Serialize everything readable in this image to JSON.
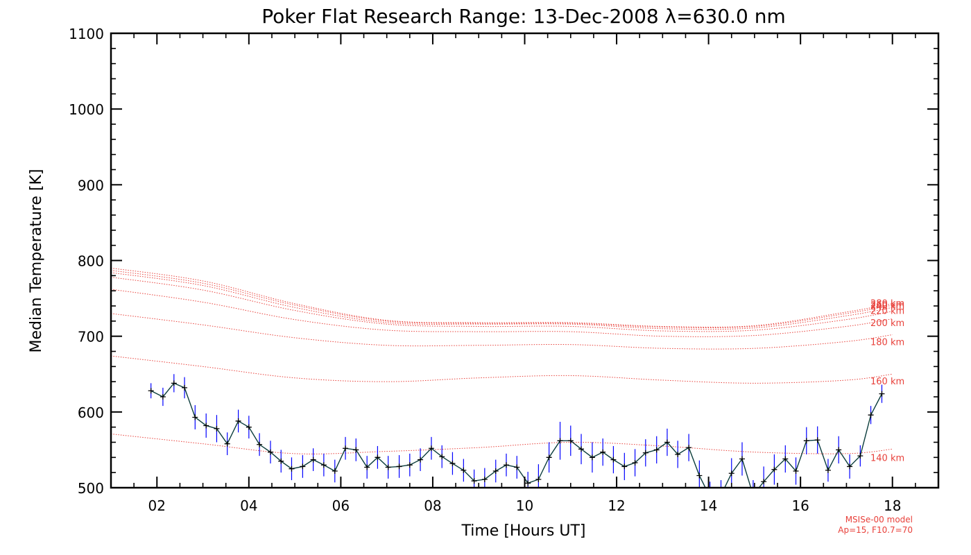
{
  "chart_data": {
    "type": "line",
    "title": "Poker Flat Research Range: 13-Dec-2008 λ=630.0 nm",
    "xlabel": "Time [Hours UT]",
    "ylabel": "Median Temperature [K]",
    "xlim": [
      1.0,
      19.0
    ],
    "ylim": [
      500,
      1100
    ],
    "xticks": [
      2,
      4,
      6,
      8,
      10,
      12,
      14,
      16,
      18
    ],
    "xtick_labels": [
      "02",
      "04",
      "06",
      "08",
      "10",
      "12",
      "14",
      "16",
      "18"
    ],
    "yticks": [
      500,
      600,
      700,
      800,
      900,
      1000,
      1100
    ],
    "ytick_labels": [
      "500",
      "600",
      "700",
      "800",
      "900",
      "1000",
      "1100"
    ],
    "grid": false,
    "measured": {
      "color": "#0a3c3c",
      "errorbar_color": "#0000ff",
      "points": [
        {
          "x": 1.87,
          "y": 628,
          "err": 10
        },
        {
          "x": 2.13,
          "y": 620,
          "err": 12
        },
        {
          "x": 2.37,
          "y": 638,
          "err": 12
        },
        {
          "x": 2.6,
          "y": 632,
          "err": 14
        },
        {
          "x": 2.83,
          "y": 593,
          "err": 16
        },
        {
          "x": 3.07,
          "y": 582,
          "err": 16
        },
        {
          "x": 3.3,
          "y": 578,
          "err": 18
        },
        {
          "x": 3.53,
          "y": 558,
          "err": 15
        },
        {
          "x": 3.77,
          "y": 588,
          "err": 15
        },
        {
          "x": 4.0,
          "y": 580,
          "err": 15
        },
        {
          "x": 4.23,
          "y": 557,
          "err": 15
        },
        {
          "x": 4.47,
          "y": 547,
          "err": 15
        },
        {
          "x": 4.7,
          "y": 535,
          "err": 15
        },
        {
          "x": 4.93,
          "y": 525,
          "err": 15
        },
        {
          "x": 5.17,
          "y": 528,
          "err": 15
        },
        {
          "x": 5.4,
          "y": 537,
          "err": 15
        },
        {
          "x": 5.63,
          "y": 530,
          "err": 15
        },
        {
          "x": 5.87,
          "y": 522,
          "err": 15
        },
        {
          "x": 6.1,
          "y": 552,
          "err": 15
        },
        {
          "x": 6.33,
          "y": 550,
          "err": 15
        },
        {
          "x": 6.57,
          "y": 527,
          "err": 15
        },
        {
          "x": 6.8,
          "y": 540,
          "err": 15
        },
        {
          "x": 7.03,
          "y": 527,
          "err": 15
        },
        {
          "x": 7.27,
          "y": 528,
          "err": 15
        },
        {
          "x": 7.5,
          "y": 530,
          "err": 15
        },
        {
          "x": 7.73,
          "y": 537,
          "err": 15
        },
        {
          "x": 7.97,
          "y": 552,
          "err": 15
        },
        {
          "x": 8.2,
          "y": 541,
          "err": 15
        },
        {
          "x": 8.43,
          "y": 532,
          "err": 15
        },
        {
          "x": 8.67,
          "y": 523,
          "err": 15
        },
        {
          "x": 8.9,
          "y": 509,
          "err": 15
        },
        {
          "x": 9.13,
          "y": 511,
          "err": 15
        },
        {
          "x": 9.37,
          "y": 522,
          "err": 15
        },
        {
          "x": 9.6,
          "y": 530,
          "err": 15
        },
        {
          "x": 9.83,
          "y": 527,
          "err": 15
        },
        {
          "x": 10.07,
          "y": 506,
          "err": 15
        },
        {
          "x": 10.3,
          "y": 511,
          "err": 20
        },
        {
          "x": 10.53,
          "y": 540,
          "err": 20
        },
        {
          "x": 10.77,
          "y": 562,
          "err": 25
        },
        {
          "x": 11.0,
          "y": 562,
          "err": 20
        },
        {
          "x": 11.23,
          "y": 551,
          "err": 20
        },
        {
          "x": 11.47,
          "y": 540,
          "err": 20
        },
        {
          "x": 11.7,
          "y": 547,
          "err": 18
        },
        {
          "x": 11.93,
          "y": 537,
          "err": 18
        },
        {
          "x": 12.17,
          "y": 528,
          "err": 18
        },
        {
          "x": 12.4,
          "y": 533,
          "err": 18
        },
        {
          "x": 12.63,
          "y": 546,
          "err": 18
        },
        {
          "x": 12.87,
          "y": 550,
          "err": 18
        },
        {
          "x": 13.1,
          "y": 560,
          "err": 18
        },
        {
          "x": 13.33,
          "y": 544,
          "err": 18
        },
        {
          "x": 13.57,
          "y": 553,
          "err": 18
        },
        {
          "x": 13.8,
          "y": 516,
          "err": 20
        },
        {
          "x": 14.03,
          "y": 488,
          "err": 20
        },
        {
          "x": 14.27,
          "y": 490,
          "err": 20
        },
        {
          "x": 14.5,
          "y": 519,
          "err": 20
        },
        {
          "x": 14.73,
          "y": 538,
          "err": 22
        },
        {
          "x": 14.97,
          "y": 490,
          "err": 20
        },
        {
          "x": 15.2,
          "y": 508,
          "err": 20
        },
        {
          "x": 15.43,
          "y": 524,
          "err": 20
        },
        {
          "x": 15.67,
          "y": 538,
          "err": 18
        },
        {
          "x": 15.9,
          "y": 522,
          "err": 18
        },
        {
          "x": 16.13,
          "y": 562,
          "err": 18
        },
        {
          "x": 16.37,
          "y": 563,
          "err": 18
        },
        {
          "x": 16.6,
          "y": 523,
          "err": 15
        },
        {
          "x": 16.83,
          "y": 550,
          "err": 18
        },
        {
          "x": 17.07,
          "y": 528,
          "err": 16
        },
        {
          "x": 17.3,
          "y": 542,
          "err": 14
        },
        {
          "x": 17.53,
          "y": 596,
          "err": 12
        },
        {
          "x": 17.77,
          "y": 624,
          "err": 12
        }
      ]
    },
    "model_series": [
      {
        "name": "140 km",
        "x": [
          1.0,
          3.0,
          5.0,
          7.0,
          9.0,
          11.0,
          13.0,
          15.0,
          17.0,
          18.0
        ],
        "y": [
          571,
          558,
          545,
          548,
          553,
          560,
          555,
          547,
          545,
          551
        ]
      },
      {
        "name": "160 km",
        "x": [
          1.0,
          3.0,
          5.0,
          7.0,
          9.0,
          11.0,
          13.0,
          15.0,
          17.0,
          18.0
        ],
        "y": [
          674,
          660,
          645,
          640,
          645,
          648,
          642,
          638,
          642,
          650
        ]
      },
      {
        "name": "180 km",
        "x": [
          1.0,
          3.0,
          5.0,
          7.0,
          9.0,
          11.0,
          13.0,
          15.0,
          17.0,
          18.0
        ],
        "y": [
          730,
          715,
          698,
          688,
          688,
          689,
          684,
          684,
          693,
          702
        ]
      },
      {
        "name": "200 km",
        "x": [
          1.0,
          3.0,
          5.0,
          7.0,
          9.0,
          11.0,
          13.0,
          15.0,
          17.0,
          18.0
        ],
        "y": [
          762,
          745,
          722,
          708,
          706,
          706,
          700,
          701,
          713,
          723
        ]
      },
      {
        "name": "220 km",
        "x": [
          1.0,
          3.0,
          5.0,
          7.0,
          9.0,
          11.0,
          13.0,
          15.0,
          17.0,
          18.0
        ],
        "y": [
          778,
          761,
          734,
          716,
          713,
          713,
          707,
          708,
          722,
          733
        ]
      },
      {
        "name": "240 km",
        "x": [
          1.0,
          3.0,
          5.0,
          7.0,
          9.0,
          11.0,
          13.0,
          15.0,
          17.0,
          18.0
        ],
        "y": [
          784,
          767,
          738,
          718,
          716,
          716,
          710,
          711,
          727,
          738
        ]
      },
      {
        "name": "260 km",
        "x": [
          1.0,
          3.0,
          5.0,
          7.0,
          9.0,
          11.0,
          13.0,
          15.0,
          17.0,
          18.0
        ],
        "y": [
          787,
          770,
          741,
          720,
          717,
          717,
          712,
          713,
          730,
          741
        ]
      },
      {
        "name": "280 km",
        "x": [
          1.0,
          3.0,
          5.0,
          7.0,
          9.0,
          11.0,
          13.0,
          15.0,
          17.0,
          18.0
        ],
        "y": [
          790,
          773,
          743,
          721,
          718,
          718,
          713,
          714,
          732,
          743
        ]
      }
    ],
    "model_color": "#e8403a",
    "model_label_values": [
      {
        "label": "280 km",
        "y": 744
      },
      {
        "label": "260 km",
        "y": 742
      },
      {
        "label": "240 km",
        "y": 740
      },
      {
        "label": "220 km",
        "y": 734
      },
      {
        "label": "200 km",
        "y": 718
      },
      {
        "label": "180 km",
        "y": 693
      },
      {
        "label": "160 km",
        "y": 641
      },
      {
        "label": "140 km",
        "y": 540
      }
    ],
    "notes": [
      "MSISe-00 model",
      "Ap=15, F10.7=70"
    ]
  }
}
